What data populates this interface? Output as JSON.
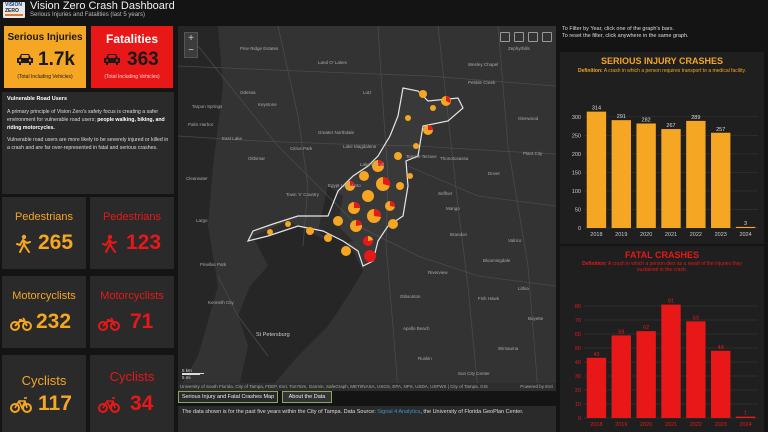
{
  "header": {
    "title": "Vision Zero Crash Dashboard",
    "subtitle": "Serious Injuries and Fatalities (last 5 years)",
    "logo_line1": "VISION",
    "logo_line2": "ZERO"
  },
  "kpis": {
    "serious": {
      "label": "Serious Injuries",
      "value": "1.7k",
      "note": "(Total Including Vehicles)",
      "color": "#f5a623",
      "icon": "car-icon"
    },
    "fatal": {
      "label": "Fatalities",
      "value": "363",
      "note": "(Total Including Vehicles)",
      "color": "#e81818",
      "icon": "car-icon"
    }
  },
  "vulnerable": {
    "heading": "Vulnerable Road Users",
    "p1_start": "A primary principle of Vision Zero's safety focus is creating a safer environment for vulnerable road users; ",
    "p1_bold": "people walking, biking, and riding motorcycles.",
    "p2": "Vulnerable road users are more likely to be severely injured or killed in a crash and are far over-represented in fatal and serious crashes."
  },
  "modes": {
    "ped_serious": {
      "label": "Pedestrians",
      "value": "265",
      "icon": "pedestrian-icon"
    },
    "ped_fatal": {
      "label": "Pedestrians",
      "value": "123",
      "icon": "pedestrian-icon"
    },
    "moto_serious": {
      "label": "Motorcyclists",
      "value": "232",
      "icon": "motorcycle-icon"
    },
    "moto_fatal": {
      "label": "Motorcyclists",
      "value": "71",
      "icon": "motorcycle-icon"
    },
    "cyc_serious": {
      "label": "Cyclists",
      "value": "117",
      "icon": "bicycle-icon"
    },
    "cyc_fatal": {
      "label": "Cyclists",
      "value": "34",
      "icon": "bicycle-icon"
    }
  },
  "map": {
    "zoom_in": "+",
    "zoom_out": "−",
    "places": [
      {
        "name": "Zephyrhills"
      },
      {
        "name": "Land O' Lakes"
      },
      {
        "name": "Wesley Chapel"
      },
      {
        "name": "Lutz"
      },
      {
        "name": "Odessa"
      },
      {
        "name": "Tarpon Springs"
      },
      {
        "name": "Keystone"
      },
      {
        "name": "Palm Harbor"
      },
      {
        "name": "Citrus Park"
      },
      {
        "name": "Greater Northdale"
      },
      {
        "name": "Lake Magdalene"
      },
      {
        "name": "Temple Terrace"
      },
      {
        "name": "Plant City"
      },
      {
        "name": "Thonotosassa"
      },
      {
        "name": "Dover"
      },
      {
        "name": "Clearwater"
      },
      {
        "name": "Town 'n' Country"
      },
      {
        "name": "Egypt Lake-Leto"
      },
      {
        "name": "Brandon"
      },
      {
        "name": "Valrico"
      },
      {
        "name": "Seffner"
      },
      {
        "name": "Mango"
      },
      {
        "name": "Largo"
      },
      {
        "name": "Pinellas Park"
      },
      {
        "name": "St Petersburg"
      },
      {
        "name": "Riverview"
      },
      {
        "name": "Gibsonton"
      },
      {
        "name": "Apollo Beach"
      },
      {
        "name": "Ruskin"
      },
      {
        "name": "Lithia"
      },
      {
        "name": "Fish Hawk"
      },
      {
        "name": "Wimauma"
      },
      {
        "name": "Sun City Center"
      },
      {
        "name": "Pine Ridge Estates"
      },
      {
        "name": "Glenwood"
      },
      {
        "name": "East Lake"
      },
      {
        "name": "Oldsmar"
      },
      {
        "name": "Pebble Creek"
      },
      {
        "name": "Lake Carroll"
      },
      {
        "name": "Bloomingdale"
      },
      {
        "name": "Kenneth City"
      },
      {
        "name": "Boyette"
      }
    ],
    "scale_km": "5 km",
    "scale_mi": "5 mi",
    "attribution": "University of South Florida, City of Tampa, FDEP, Esri, TomTom, Garmin, SafeGraph, METI/NASA, USGS, EPA, NPS, USDA, USFWS | City of Tampa, GIS",
    "powered": "Powered by Esri",
    "tabs": [
      "Serious Injury and Fatal Crashes Map",
      "About the Data"
    ]
  },
  "source": {
    "text_start": "The data shown is for the past five years within the City of Tampa.  Data Source: ",
    "link": "Signal 4 Analytics",
    "text_end": ", the University of Florida GeoPlan Center."
  },
  "filter_note": {
    "line1": "To Filter by Year, click one of the graph's bars.",
    "line2": "To reset the filter, click anywhere in the same graph."
  },
  "chart_data": [
    {
      "type": "bar",
      "title": "SERIOUS INJURY CRASHES",
      "definition_label": "Definition:",
      "definition": " A crash in which a person requires transport to a medical facility.",
      "categories": [
        "2018",
        "2019",
        "2020",
        "2021",
        "2022",
        "2023",
        "2024"
      ],
      "values": [
        314,
        291,
        282,
        267,
        289,
        257,
        3
      ],
      "yticks": [
        0,
        50,
        100,
        150,
        200,
        250,
        300
      ],
      "ylim": [
        0,
        340
      ],
      "color": "#f5a623"
    },
    {
      "type": "bar",
      "title": "FATAL CRASHES",
      "definition_label": "Definition:",
      "definition": " A crash in which a person dies as a result of the injuries they sustained in the crash.",
      "categories": [
        "2018",
        "2019",
        "2020",
        "2021",
        "2022",
        "2023",
        "2024"
      ],
      "values": [
        43,
        59,
        62,
        81,
        69,
        48,
        1
      ],
      "yticks": [
        0,
        10,
        20,
        30,
        40,
        50,
        60,
        70,
        80
      ],
      "ylim": [
        0,
        90
      ],
      "color": "#e81818"
    }
  ]
}
